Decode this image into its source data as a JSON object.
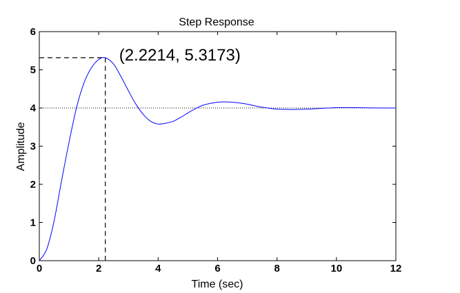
{
  "chart_data": {
    "type": "line",
    "title": "Step Response",
    "xlabel": "Time (sec)",
    "ylabel": "Amplitude",
    "xlim": [
      0,
      12
    ],
    "ylim": [
      0,
      6
    ],
    "xticks": [
      0,
      2,
      4,
      6,
      8,
      10,
      12
    ],
    "yticks": [
      0,
      1,
      2,
      3,
      4,
      5,
      6
    ],
    "grid": false,
    "series": [
      {
        "color": "#0000ff",
        "x": [
          0,
          0.25,
          0.5,
          0.75,
          1.0,
          1.25,
          1.5,
          1.75,
          2.0,
          2.2214,
          2.5,
          2.75,
          3.0,
          3.25,
          3.5,
          3.75,
          4.0,
          4.25,
          4.5,
          4.75,
          5.0,
          5.25,
          5.5,
          5.75,
          6.0,
          6.25,
          6.5,
          6.75,
          7.0,
          7.5,
          8.0,
          8.5,
          9.0,
          9.5,
          10.0,
          10.5,
          11.0,
          11.5,
          12.0
        ],
        "y": [
          0,
          0.3,
          1.05,
          2.1,
          3.1,
          4.0,
          4.65,
          5.05,
          5.27,
          5.3173,
          5.15,
          4.82,
          4.45,
          4.1,
          3.83,
          3.65,
          3.58,
          3.6,
          3.65,
          3.75,
          3.87,
          3.98,
          4.07,
          4.12,
          4.15,
          4.16,
          4.15,
          4.13,
          4.1,
          4.02,
          3.97,
          3.96,
          3.97,
          3.99,
          4.01,
          4.01,
          4.005,
          4.0,
          4.0
        ]
      }
    ],
    "final_value": 4,
    "peak": {
      "x": 2.2214,
      "y": 5.3173,
      "label": "(2.2214, 5.3173)"
    }
  },
  "colors": {
    "line": "#0000ff",
    "axes": "#000000",
    "guide": "#000000",
    "final_value_line": "#000000"
  }
}
